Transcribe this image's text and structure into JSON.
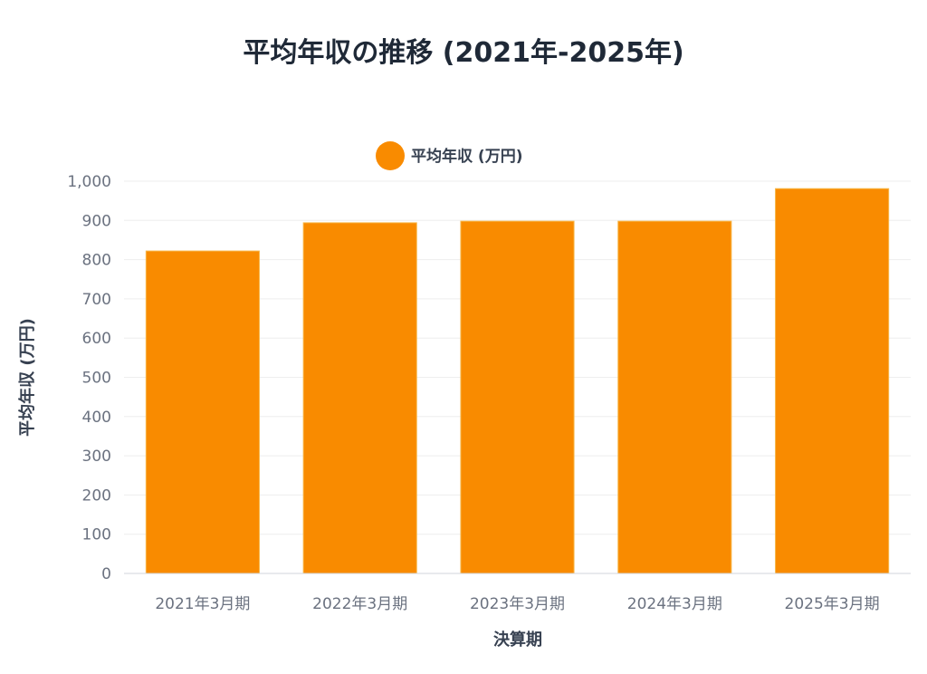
{
  "chart_data": {
    "type": "bar",
    "title": "平均年収の推移 (2021年-2025年)",
    "xlabel": "決算期",
    "ylabel": "平均年収 (万円)",
    "categories": [
      "2021年3月期",
      "2022年3月期",
      "2023年3月期",
      "2024年3月期",
      "2025年3月期"
    ],
    "series": [
      {
        "name": "平均年収 (万円)",
        "values": [
          822,
          894,
          898,
          898,
          981
        ],
        "color": "#f98b00",
        "border_color": "#f7b84a"
      }
    ],
    "ylim": [
      0,
      1000
    ],
    "yticks": [
      "0",
      "100",
      "200",
      "300",
      "400",
      "500",
      "600",
      "700",
      "800",
      "900",
      "1,000"
    ],
    "ytick_values": [
      0,
      100,
      200,
      300,
      400,
      500,
      600,
      700,
      800,
      900,
      1000
    ],
    "legend_position": "top-center",
    "grid": true
  }
}
